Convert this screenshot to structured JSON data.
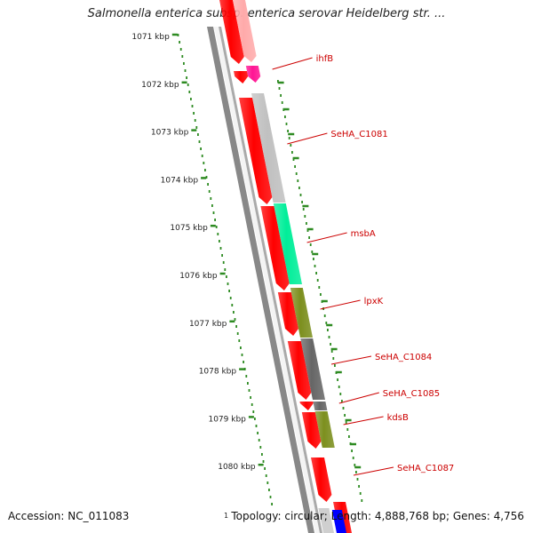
{
  "title": "Salmonella enterica subsp. enterica serovar Heidelberg str. ...",
  "footer": {
    "accession": "Accession: NC_011083",
    "summary": "Topology: circular; Length: 4,888,768 bp; Genes: 4,756"
  },
  "scale": {
    "unit": "kbp",
    "ticks": [
      "1071 kbp",
      "1072 kbp",
      "1073 kbp",
      "1074 kbp",
      "1075 kbp",
      "1076 kbp",
      "1077 kbp",
      "1078 kbp",
      "1079 kbp",
      "1080 kbp"
    ],
    "partial_label": "1",
    "color": "#2e8b22"
  },
  "colors": {
    "strand_forward": "#ff0000",
    "backbone": "#888888",
    "label": "#cc0000"
  },
  "genes": [
    {
      "label": "",
      "color": "#ffaaaa"
    },
    {
      "label": "ihfB",
      "color": "#ff1493"
    },
    {
      "label": "SeHA_C1081",
      "color": "#c0c0c0"
    },
    {
      "label": "msbA",
      "color": "#00ee99"
    },
    {
      "label": "lpxK",
      "color": "#7c8f1e"
    },
    {
      "label": "SeHA_C1084",
      "color": "#666666"
    },
    {
      "label": "SeHA_C1085",
      "color": "#666666"
    },
    {
      "label": "kdsB",
      "color": "#7c8f1e"
    },
    {
      "label": "SeHA_C1087",
      "color": "#ff0000"
    }
  ]
}
